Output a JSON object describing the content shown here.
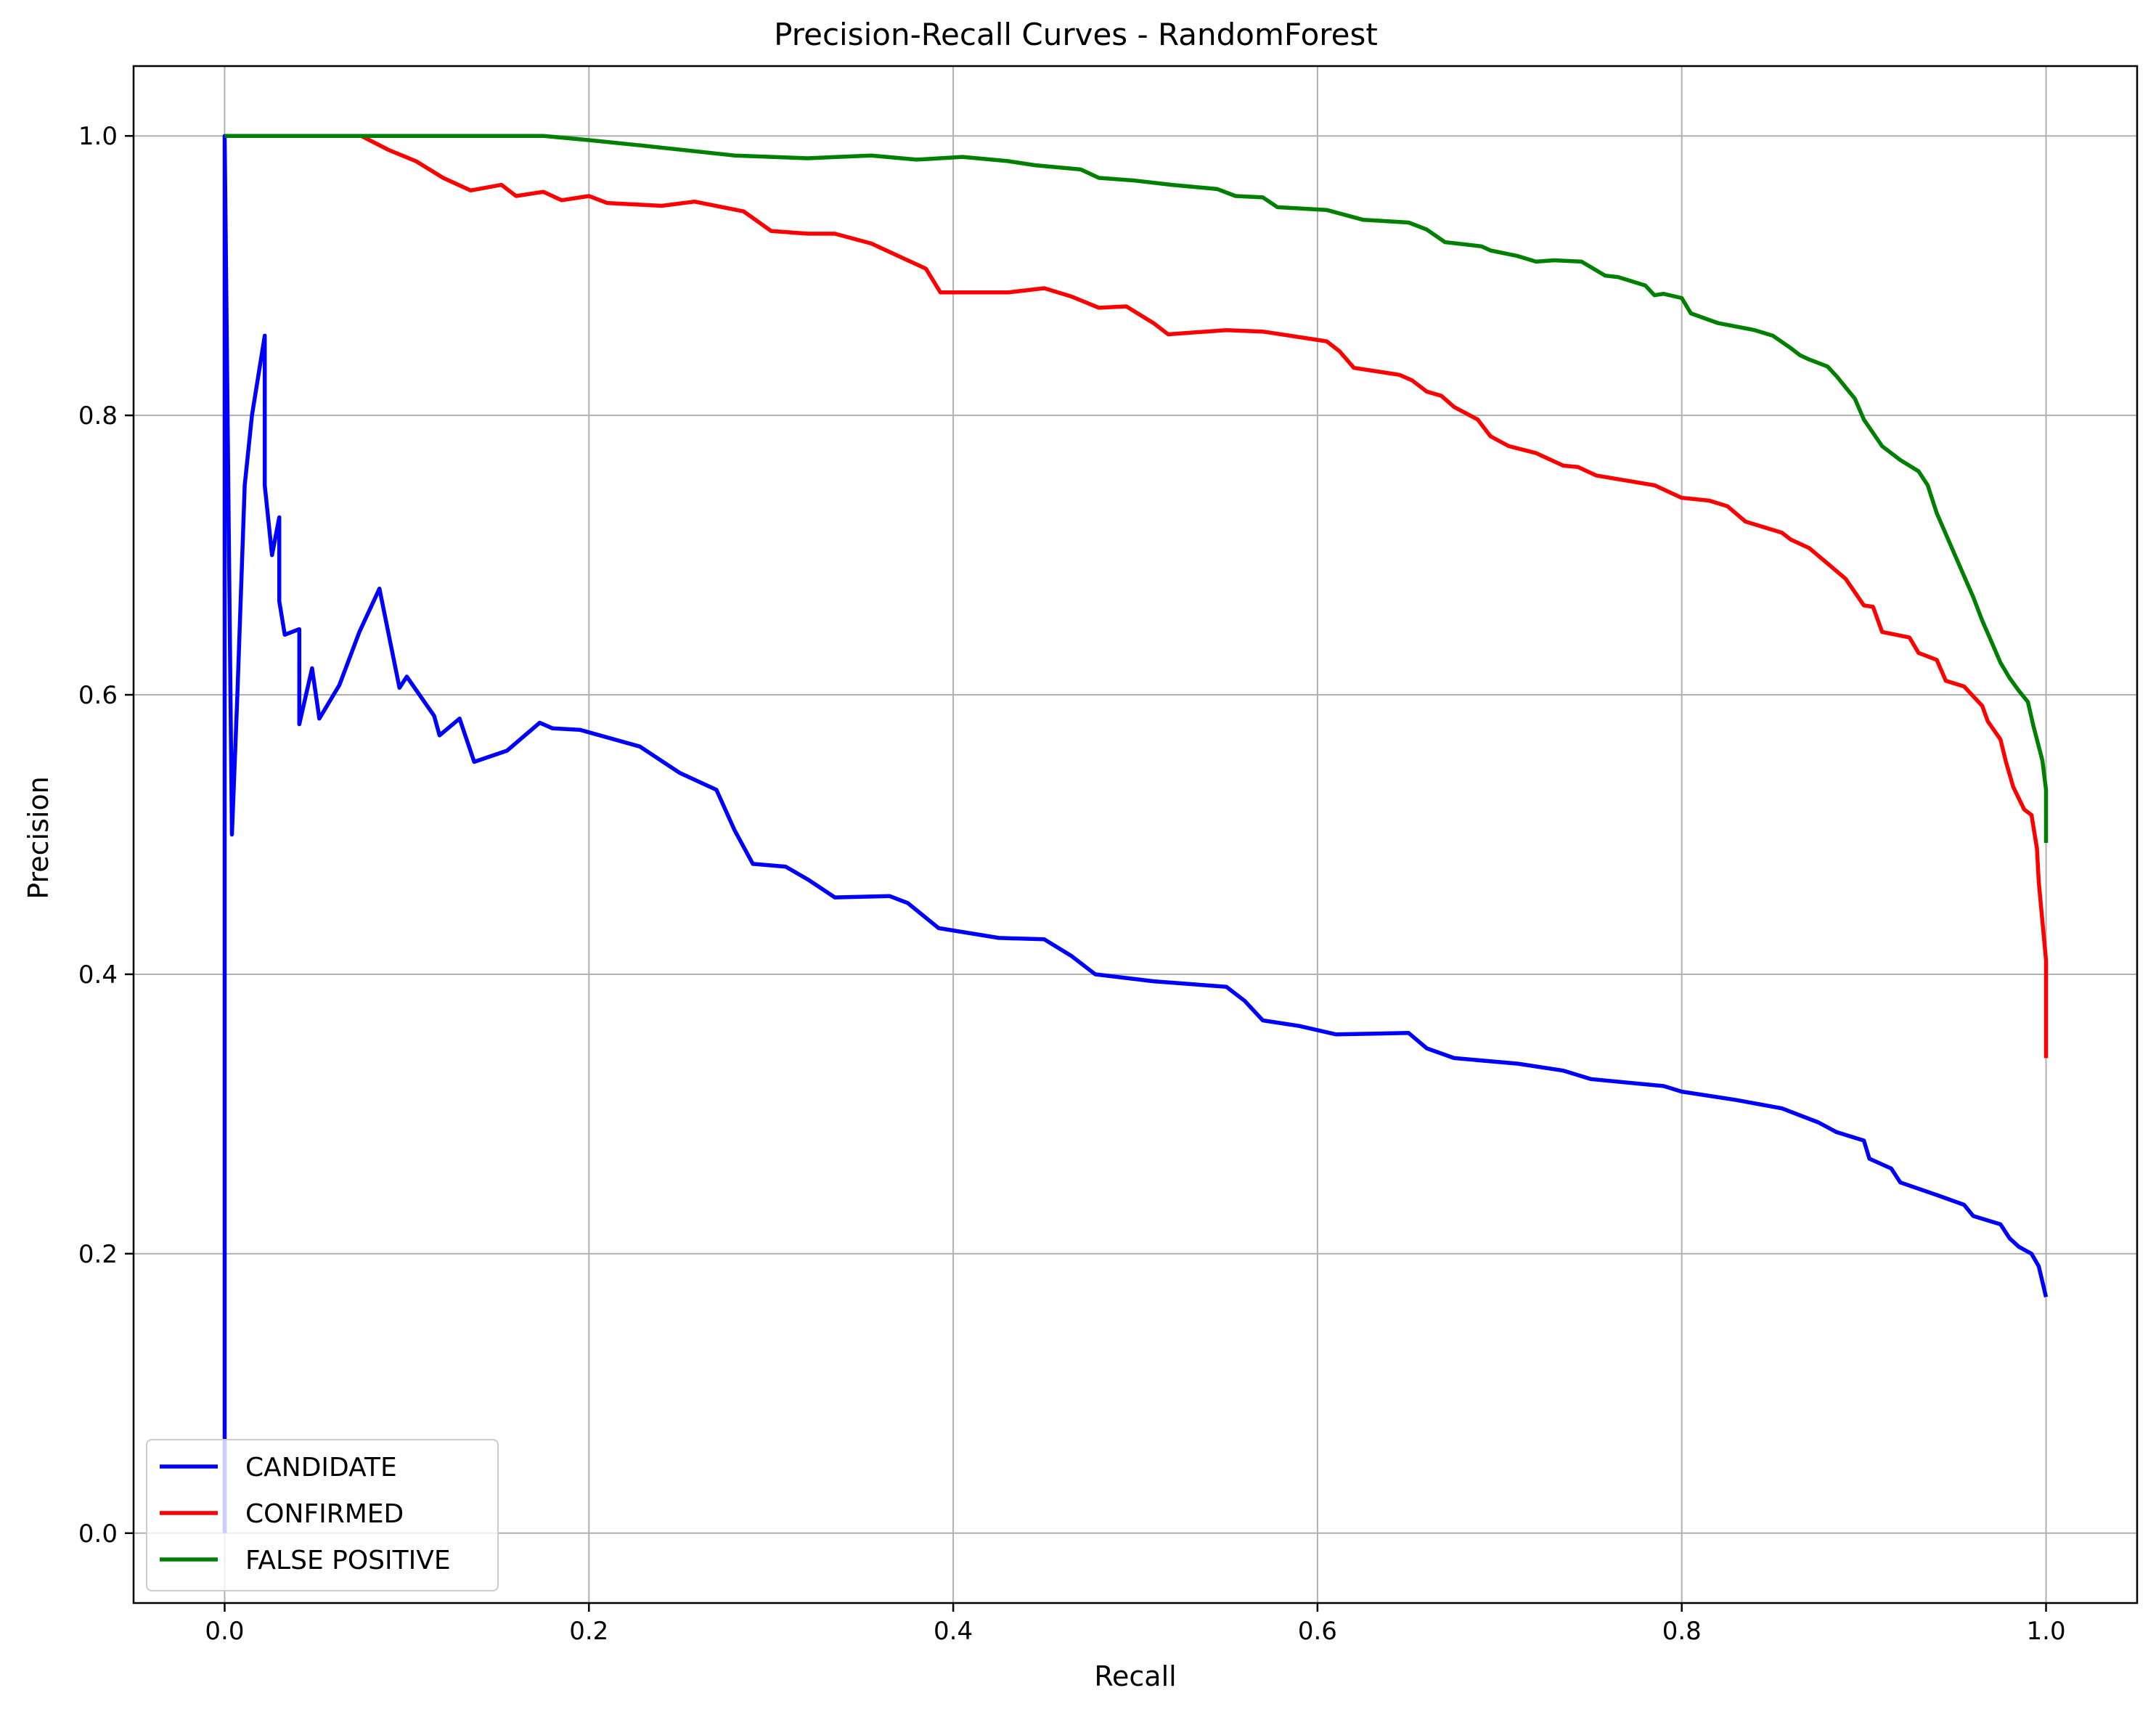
{
  "chart_data": {
    "type": "line",
    "title": "Precision-Recall Curves - RandomForest",
    "xlabel": "Recall",
    "ylabel": "Precision",
    "xlim": [
      -0.05,
      1.05
    ],
    "ylim": [
      -0.05,
      1.05
    ],
    "xticks": [
      "0.0",
      "0.2",
      "0.4",
      "0.6",
      "0.8",
      "1.0"
    ],
    "yticks": [
      "0.0",
      "0.2",
      "0.4",
      "0.6",
      "0.8",
      "1.0"
    ],
    "grid": true,
    "legend_position": "lower-left",
    "series": [
      {
        "name": "CANDIDATE",
        "color": "#0000ff",
        "x": [
          0.0,
          0.0,
          0.004,
          0.007,
          0.011,
          0.015,
          0.022,
          0.022,
          0.026,
          0.03,
          0.03,
          0.033,
          0.041,
          0.041,
          0.048,
          0.052,
          0.063,
          0.074,
          0.085,
          0.096,
          0.1,
          0.115,
          0.118,
          0.129,
          0.137,
          0.155,
          0.173,
          0.18,
          0.195,
          0.228,
          0.25,
          0.27,
          0.28,
          0.29,
          0.308,
          0.32,
          0.335,
          0.365,
          0.375,
          0.392,
          0.425,
          0.45,
          0.465,
          0.478,
          0.51,
          0.55,
          0.56,
          0.57,
          0.59,
          0.61,
          0.65,
          0.66,
          0.675,
          0.71,
          0.735,
          0.75,
          0.79,
          0.8,
          0.83,
          0.855,
          0.875,
          0.885,
          0.9,
          0.903,
          0.915,
          0.92,
          0.94,
          0.955,
          0.96,
          0.975,
          0.98,
          0.985,
          0.992,
          0.996,
          1.0
        ],
        "y": [
          0.0,
          1.0,
          0.5,
          0.6,
          0.75,
          0.8,
          0.857,
          0.75,
          0.7,
          0.727,
          0.667,
          0.643,
          0.647,
          0.579,
          0.619,
          0.583,
          0.607,
          0.645,
          0.676,
          0.605,
          0.613,
          0.585,
          0.571,
          0.583,
          0.552,
          0.56,
          0.58,
          0.576,
          0.575,
          0.563,
          0.544,
          0.532,
          0.503,
          0.479,
          0.477,
          0.468,
          0.455,
          0.456,
          0.451,
          0.433,
          0.426,
          0.425,
          0.413,
          0.4,
          0.395,
          0.391,
          0.381,
          0.367,
          0.363,
          0.357,
          0.358,
          0.347,
          0.34,
          0.336,
          0.331,
          0.325,
          0.32,
          0.316,
          0.31,
          0.304,
          0.294,
          0.287,
          0.281,
          0.268,
          0.261,
          0.251,
          0.242,
          0.235,
          0.227,
          0.221,
          0.211,
          0.205,
          0.2,
          0.191,
          0.169
        ]
      },
      {
        "name": "CONFIRMED",
        "color": "#ff0000",
        "x": [
          0.0,
          0.075,
          0.09,
          0.105,
          0.12,
          0.135,
          0.152,
          0.16,
          0.175,
          0.185,
          0.2,
          0.21,
          0.24,
          0.258,
          0.285,
          0.3,
          0.32,
          0.335,
          0.355,
          0.37,
          0.385,
          0.393,
          0.43,
          0.45,
          0.465,
          0.48,
          0.495,
          0.51,
          0.518,
          0.55,
          0.57,
          0.605,
          0.612,
          0.62,
          0.645,
          0.652,
          0.66,
          0.668,
          0.675,
          0.688,
          0.695,
          0.705,
          0.72,
          0.735,
          0.743,
          0.753,
          0.785,
          0.8,
          0.815,
          0.825,
          0.835,
          0.855,
          0.86,
          0.87,
          0.88,
          0.89,
          0.9,
          0.905,
          0.91,
          0.925,
          0.93,
          0.94,
          0.945,
          0.955,
          0.965,
          0.968,
          0.975,
          0.978,
          0.982,
          0.985,
          0.988,
          0.992,
          0.995,
          0.996,
          1.0,
          1.0
        ],
        "y": [
          1.0,
          1.0,
          0.99,
          0.982,
          0.97,
          0.961,
          0.965,
          0.957,
          0.96,
          0.954,
          0.957,
          0.952,
          0.95,
          0.953,
          0.946,
          0.932,
          0.93,
          0.93,
          0.923,
          0.914,
          0.905,
          0.888,
          0.888,
          0.891,
          0.885,
          0.877,
          0.878,
          0.866,
          0.858,
          0.861,
          0.86,
          0.853,
          0.846,
          0.834,
          0.829,
          0.825,
          0.817,
          0.814,
          0.806,
          0.797,
          0.785,
          0.778,
          0.773,
          0.764,
          0.763,
          0.757,
          0.75,
          0.741,
          0.739,
          0.735,
          0.724,
          0.716,
          0.711,
          0.705,
          0.694,
          0.683,
          0.664,
          0.663,
          0.645,
          0.641,
          0.63,
          0.625,
          0.61,
          0.606,
          0.592,
          0.581,
          0.568,
          0.552,
          0.534,
          0.526,
          0.518,
          0.514,
          0.49,
          0.466,
          0.41,
          0.34
        ]
      },
      {
        "name": "FALSE POSITIVE",
        "color": "#008000",
        "x": [
          0.0,
          0.175,
          0.2,
          0.23,
          0.28,
          0.32,
          0.355,
          0.38,
          0.405,
          0.43,
          0.445,
          0.47,
          0.48,
          0.5,
          0.52,
          0.545,
          0.555,
          0.57,
          0.578,
          0.605,
          0.625,
          0.65,
          0.66,
          0.67,
          0.69,
          0.695,
          0.71,
          0.72,
          0.73,
          0.745,
          0.758,
          0.765,
          0.77,
          0.78,
          0.785,
          0.79,
          0.8,
          0.805,
          0.82,
          0.84,
          0.85,
          0.86,
          0.865,
          0.87,
          0.88,
          0.885,
          0.89,
          0.895,
          0.9,
          0.91,
          0.92,
          0.93,
          0.935,
          0.94,
          0.945,
          0.955,
          0.96,
          0.965,
          0.97,
          0.975,
          0.98,
          0.985,
          0.99,
          0.993,
          0.995,
          0.998,
          1.0,
          1.0
        ],
        "y": [
          1.0,
          1.0,
          0.997,
          0.993,
          0.986,
          0.984,
          0.986,
          0.983,
          0.985,
          0.982,
          0.979,
          0.976,
          0.97,
          0.968,
          0.965,
          0.962,
          0.957,
          0.956,
          0.949,
          0.947,
          0.94,
          0.938,
          0.933,
          0.924,
          0.921,
          0.918,
          0.914,
          0.91,
          0.911,
          0.91,
          0.9,
          0.899,
          0.897,
          0.893,
          0.886,
          0.887,
          0.884,
          0.873,
          0.866,
          0.861,
          0.857,
          0.848,
          0.843,
          0.84,
          0.835,
          0.828,
          0.82,
          0.812,
          0.797,
          0.778,
          0.768,
          0.76,
          0.75,
          0.73,
          0.715,
          0.685,
          0.67,
          0.653,
          0.638,
          0.623,
          0.612,
          0.603,
          0.595,
          0.578,
          0.568,
          0.553,
          0.532,
          0.494
        ]
      }
    ]
  }
}
